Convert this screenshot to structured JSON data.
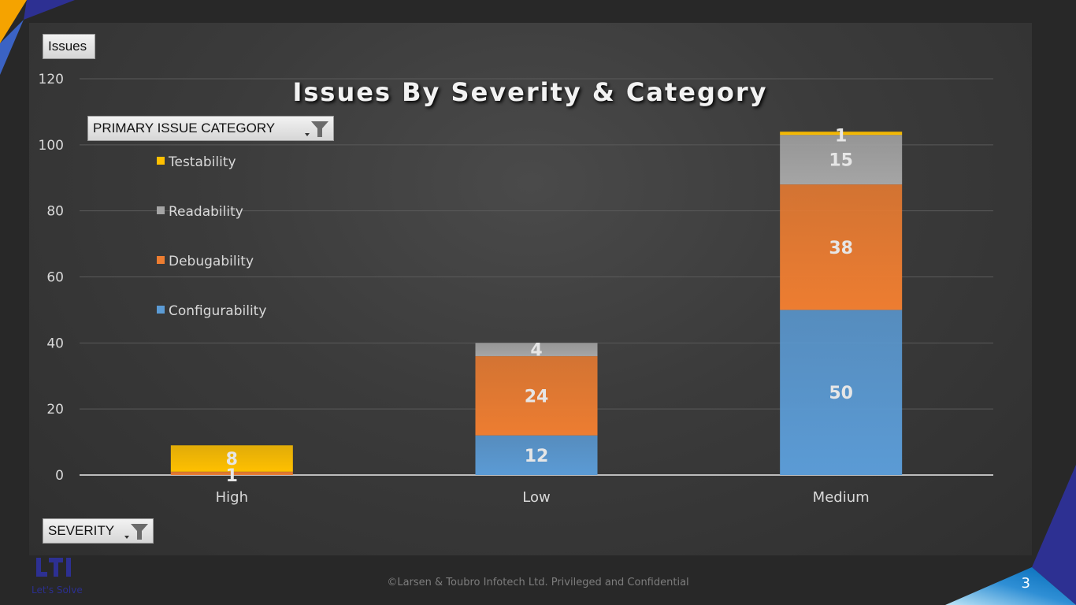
{
  "slide": {
    "footer": "©Larsen & Toubro Infotech Ltd. Privileged and Confidential",
    "page_number": "3",
    "logo_text": "LTI",
    "tagline": "Let's Solve"
  },
  "pivot": {
    "values_field": "Issues",
    "legend_field": "PRIMARY ISSUE CATEGORY",
    "axis_field": "SEVERITY"
  },
  "colors": {
    "Configurability": "#5b9bd5",
    "Debugability": "#ed7d31",
    "Readability": "#a5a5a5",
    "Testability": "#ffc000"
  },
  "chart_data": {
    "type": "bar",
    "stacked": true,
    "title": "Issues By Severity & Category",
    "xlabel": "",
    "ylabel": "Issues",
    "categories": [
      "High",
      "Low",
      "Medium"
    ],
    "series": [
      {
        "name": "Configurability",
        "values": [
          0,
          12,
          50
        ]
      },
      {
        "name": "Debugability",
        "values": [
          1,
          24,
          38
        ]
      },
      {
        "name": "Readability",
        "values": [
          0,
          4,
          15
        ]
      },
      {
        "name": "Testability",
        "values": [
          8,
          0,
          1
        ]
      }
    ],
    "ylim": [
      0,
      120
    ],
    "yticks": [
      0,
      20,
      40,
      60,
      80,
      100,
      120
    ],
    "grid": true,
    "legend_position": "top-left"
  }
}
